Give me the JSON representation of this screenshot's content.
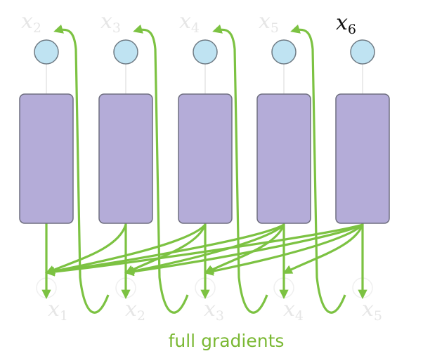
{
  "colors": {
    "arrow": "#7cc242",
    "block_fill": "#b4acd8",
    "block_stroke": "#6f6f80",
    "node_fill": "#bfe3f2",
    "node_stroke": "#6f7b84",
    "caption": "#7ab833",
    "faded_label": "#e6e6e6",
    "dark_label": "#111111"
  },
  "top_labels": [
    {
      "base": "x",
      "sub": "2"
    },
    {
      "base": "x",
      "sub": "3"
    },
    {
      "base": "x",
      "sub": "4"
    },
    {
      "base": "x",
      "sub": "5"
    },
    {
      "base": "x",
      "sub": "6"
    }
  ],
  "bottom_labels": [
    {
      "base": "x",
      "sub": "1"
    },
    {
      "base": "x",
      "sub": "2"
    },
    {
      "base": "x",
      "sub": "3"
    },
    {
      "base": "x",
      "sub": "4"
    },
    {
      "base": "x",
      "sub": "5"
    }
  ],
  "caption": "full gradients"
}
